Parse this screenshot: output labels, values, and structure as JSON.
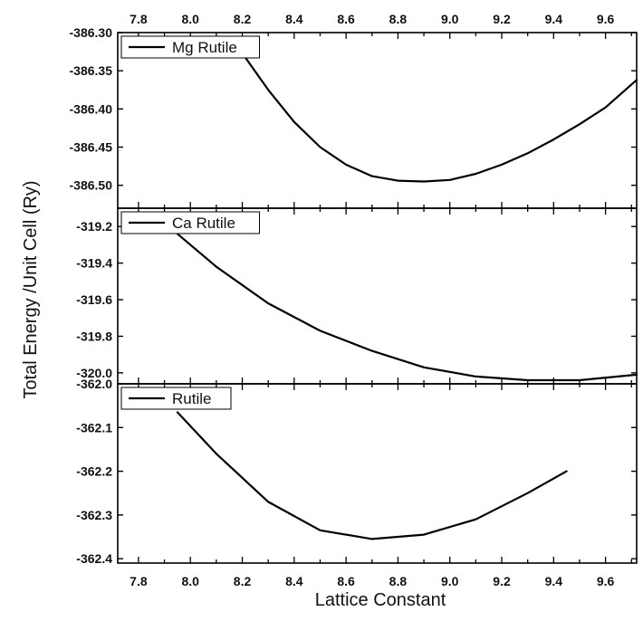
{
  "chart_data": {
    "type": "line",
    "xlabel": "Lattice Constant",
    "ylabel": "Total Energy /Unit Cell (Ry)",
    "xlim": [
      7.72,
      9.72
    ],
    "x_ticks": [
      "7.8",
      "8.0",
      "8.2",
      "8.4",
      "8.6",
      "8.8",
      "9.0",
      "9.2",
      "9.4",
      "9.6"
    ],
    "grid": false,
    "legend_placement": "top-left",
    "line_color": "#000000",
    "panels": [
      {
        "legend": "Mg Rutile",
        "ylim": [
          -386.53,
          -386.3
        ],
        "y_ticks": [
          "-386.30",
          "-386.35",
          "-386.40",
          "-386.45",
          "-386.50"
        ],
        "series": [
          {
            "name": "Mg Rutile",
            "x": [
              8.2,
              8.3,
              8.4,
              8.5,
              8.6,
              8.7,
              8.8,
              8.9,
              9.0,
              9.1,
              9.2,
              9.3,
              9.4,
              9.5,
              9.6,
              9.72
            ],
            "y": [
              -386.327,
              -386.375,
              -386.417,
              -386.45,
              -386.473,
              -386.488,
              -386.494,
              -386.495,
              -386.493,
              -386.485,
              -386.473,
              -386.458,
              -386.44,
              -386.42,
              -386.398,
              -386.362
            ]
          }
        ]
      },
      {
        "legend": "Ca Rutile",
        "ylim": [
          -320.06,
          -319.1
        ],
        "y_ticks": [
          "-319.2",
          "-319.4",
          "-319.6",
          "-319.8",
          "-320.0"
        ],
        "series": [
          {
            "name": "Ca Rutile",
            "x": [
              7.95,
              8.1,
              8.3,
              8.5,
              8.7,
              8.9,
              9.1,
              9.3,
              9.5,
              9.72
            ],
            "y": [
              -319.24,
              -319.42,
              -319.62,
              -319.77,
              -319.88,
              -319.97,
              -320.02,
              -320.04,
              -320.04,
              -320.01
            ]
          }
        ]
      },
      {
        "legend": "Rutile",
        "ylim": [
          -362.41,
          -362.0
        ],
        "y_ticks": [
          "-362.0",
          "-362.1",
          "-362.2",
          "-362.3",
          "-362.4"
        ],
        "series": [
          {
            "name": "Rutile",
            "x": [
              7.95,
              8.1,
              8.3,
              8.5,
              8.7,
              8.9,
              9.1,
              9.3,
              9.45
            ],
            "y": [
              -362.065,
              -362.16,
              -362.27,
              -362.335,
              -362.355,
              -362.345,
              -362.31,
              -362.25,
              -362.2
            ]
          }
        ]
      }
    ]
  }
}
